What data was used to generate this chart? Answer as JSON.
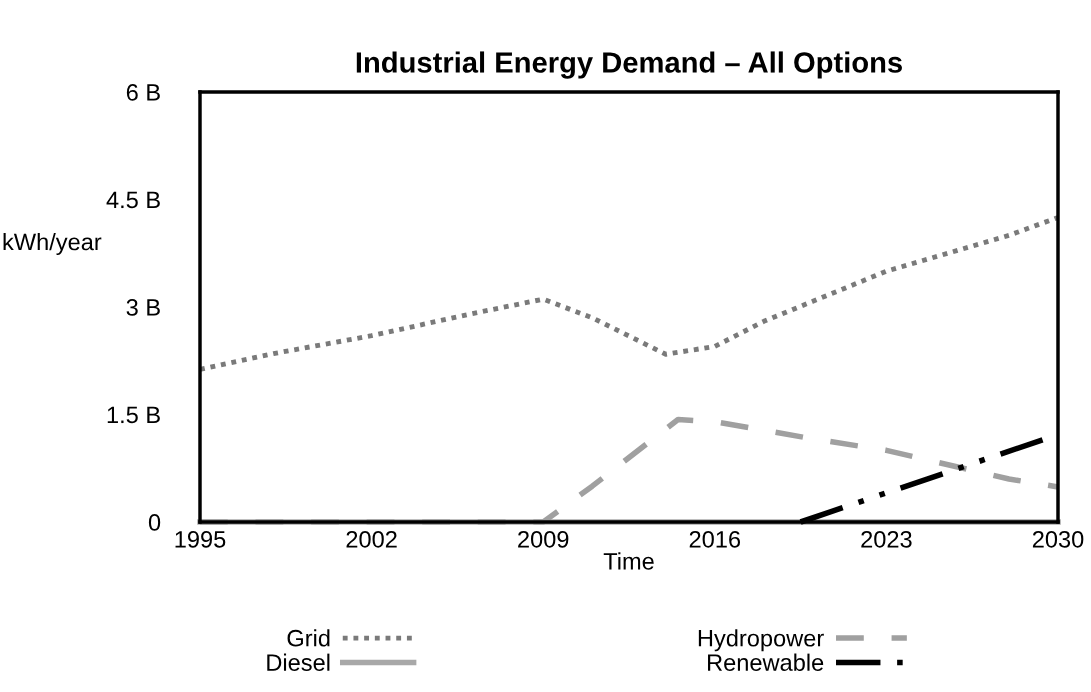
{
  "chart_data": {
    "type": "line",
    "title": "Industrial Energy Demand – All Options",
    "xlabel": "Time",
    "ylabel": "kWh/year",
    "xlim": [
      1995,
      2030
    ],
    "xticks": [
      1995,
      2002,
      2009,
      2016,
      2023,
      2030
    ],
    "ylim": [
      0,
      6
    ],
    "yticks": [
      0,
      {
        "value": 1.5,
        "label": "1.5 B"
      },
      {
        "value": 3,
        "label": "3 B"
      },
      {
        "value": 4.5,
        "label": "4.5 B"
      },
      {
        "value": 6,
        "label": "6 B"
      }
    ],
    "grid": false,
    "legend": "bottom",
    "marker": "none",
    "series": [
      {
        "name": "Grid",
        "color": "#7a7a7a",
        "line_style": "dotted",
        "x": [
          1995,
          1998,
          2002,
          2006,
          2009,
          2011,
          2014,
          2016,
          2018,
          2020,
          2023,
          2026,
          2028,
          2030
        ],
        "values": [
          2.13,
          2.35,
          2.6,
          2.9,
          3.11,
          2.85,
          2.34,
          2.45,
          2.8,
          3.08,
          3.5,
          3.8,
          4.0,
          4.25
        ]
      },
      {
        "name": "Diesel",
        "color": "#a8a8a8",
        "line_style": "solid",
        "x": [
          1995,
          2030
        ],
        "values": [
          0,
          0
        ]
      },
      {
        "name": "Hydropower",
        "color": "#a0a0a0",
        "line_style": "dashed",
        "x": [
          1995,
          2009,
          2011,
          2014.5,
          2016,
          2020,
          2023,
          2025,
          2028,
          2030
        ],
        "values": [
          0,
          0,
          0.5,
          1.43,
          1.4,
          1.16,
          1.0,
          0.84,
          0.6,
          0.49
        ]
      },
      {
        "name": "Renewable",
        "color": "#000000",
        "line_style": "dashdot",
        "x": [
          2019.5,
          2030
        ],
        "values": [
          0,
          1.22
        ]
      }
    ]
  }
}
